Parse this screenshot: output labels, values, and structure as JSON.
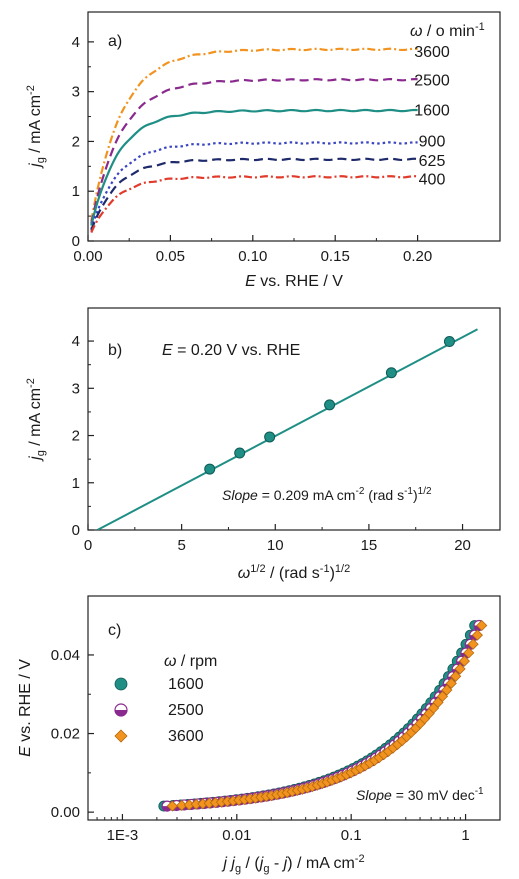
{
  "colors": {
    "400": "#e03b2c",
    "625": "#1f2a6b",
    "900": "#3a45c0",
    "1600": "#1f8f86",
    "2500": "#8a2a8e",
    "3600": "#f2931f",
    "fit": "#1f8f86"
  },
  "chart_data": [
    {
      "type": "line",
      "panel_label": "a)",
      "xlabel_var": "E",
      "xlabel_rest": " vs. RHE / V",
      "ylabel_var": "j",
      "ylabel_sub": "g",
      "ylabel_rest": " / mA cm",
      "ylabel_sup": "-2",
      "legend_title_var": "ω",
      "legend_title_rest": " / o min",
      "legend_title_sup": "-1",
      "xlim": [
        0,
        0.25
      ],
      "ylim": [
        0,
        4.6
      ],
      "xticks": [
        "0.00",
        "0.05",
        "0.10",
        "0.15",
        "0.20"
      ],
      "xtick_values": [
        0,
        0.05,
        0.1,
        0.15,
        0.2
      ],
      "yticks": [
        "0",
        "1",
        "2",
        "3",
        "4"
      ],
      "ytick_values": [
        0,
        1,
        2,
        3,
        4
      ],
      "series": [
        {
          "name": "3600",
          "style": "dashdot",
          "color_key": "3600",
          "limit": 3.85,
          "tau": 0.0185,
          "label_y": 3.82
        },
        {
          "name": "2500",
          "style": "dash",
          "color_key": "2500",
          "limit": 3.24,
          "tau": 0.018,
          "label_y": 3.24
        },
        {
          "name": "1600",
          "style": "solid",
          "color_key": "1600",
          "limit": 2.62,
          "tau": 0.0165,
          "label_y": 2.64
        },
        {
          "name": "900",
          "style": "dot",
          "color_key": "900",
          "limit": 1.97,
          "tau": 0.016,
          "label_y": 2.02
        },
        {
          "name": "625",
          "style": "dash",
          "color_key": "625",
          "limit": 1.64,
          "tau": 0.0155,
          "label_y": 1.63
        },
        {
          "name": "400",
          "style": "dashdot",
          "color_key": "400",
          "limit": 1.29,
          "tau": 0.015,
          "label_y": 1.26
        }
      ]
    },
    {
      "type": "scatter",
      "panel_label": "b)",
      "annotation_var": "E",
      "annotation_rest": " = 0.20 V vs. RHE",
      "slope_var": "Slope",
      "slope_text": " = 0.209 mA cm",
      "slope_sup1": "-2",
      "slope_text2": " (rad s",
      "slope_sup2": "-1",
      "slope_text3": ")",
      "slope_sup3": "1/2",
      "xlabel_var": "ω",
      "xlabel_sup": "1/2",
      "xlabel_rest": " / (rad s",
      "xlabel_sup2": "-1",
      "xlabel_rest2": ")",
      "xlabel_sup3": "1/2",
      "ylabel_var": "j",
      "ylabel_sub": "g",
      "ylabel_rest": " / mA cm",
      "ylabel_sup": "-2",
      "xlim": [
        0,
        22
      ],
      "ylim": [
        0,
        4.7
      ],
      "xticks": [
        "0",
        "5",
        "10",
        "15",
        "20"
      ],
      "xtick_values": [
        0,
        5,
        10,
        15,
        20
      ],
      "yticks": [
        "0",
        "1",
        "2",
        "3",
        "4"
      ],
      "ytick_values": [
        0,
        1,
        2,
        3,
        4
      ],
      "x": [
        6.5,
        8.1,
        9.7,
        12.9,
        16.2,
        19.3
      ],
      "y": [
        1.29,
        1.63,
        1.97,
        2.65,
        3.33,
        3.99
      ],
      "fit_line": {
        "x": [
          0.5,
          20.8
        ],
        "y": [
          0.0,
          4.25
        ]
      }
    },
    {
      "type": "scatter",
      "panel_label": "c)",
      "x_scale": "log",
      "xlabel_var": "j j",
      "xlabel_sub": "g",
      "xlabel_rest": " / (",
      "xlabel_var2": "j",
      "xlabel_sub2": "g",
      "xlabel_rest2": " - ",
      "xlabel_var3": "j",
      "xlabel_rest3": ") / mA cm",
      "xlabel_sup": "-2",
      "ylabel_var": "E",
      "ylabel_rest": " vs. RHE / V",
      "legend_title_var": "ω",
      "legend_title_rest": " / rpm",
      "slope_var": "Slope",
      "slope_text": " = 30 mV dec",
      "slope_sup": "-1",
      "xlim": [
        0.0005,
        2.0
      ],
      "ylim": [
        -0.002,
        0.055
      ],
      "xticks": [
        "1E-3",
        "0.01",
        "0.1",
        "1"
      ],
      "xtick_values": [
        0.001,
        0.01,
        0.1,
        1
      ],
      "yticks": [
        "0.00",
        "0.02",
        "0.04"
      ],
      "ytick_values": [
        0,
        0.02,
        0.04
      ],
      "series": [
        {
          "name": "1600",
          "color_key": "1600",
          "shape": "circle",
          "x_at_e0": 0.0023,
          "x_max": 1.2
        },
        {
          "name": "2500",
          "color_key": "2500",
          "shape": "halfcircle",
          "x_at_e0": 0.0024,
          "x_max": 1.28
        },
        {
          "name": "3600",
          "color_key": "3600",
          "shape": "diamond",
          "x_at_e0": 0.0026,
          "x_max": 1.32
        }
      ]
    }
  ]
}
